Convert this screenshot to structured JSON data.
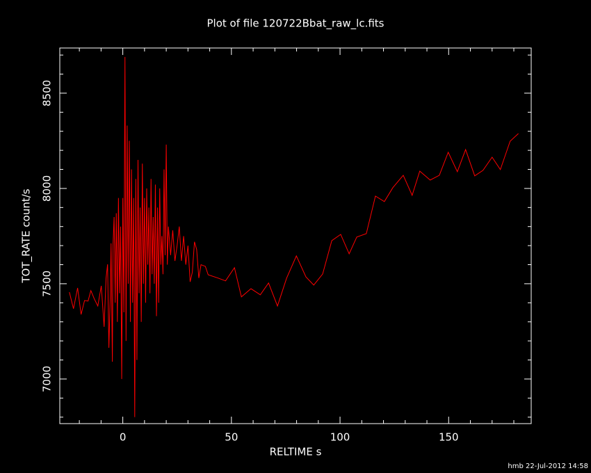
{
  "chart_data": {
    "type": "line",
    "title": "Plot of file 120722Bbat_raw_lc.fits",
    "x_label": "RELTIME  s",
    "y_label": "TOT_RATE  count/s",
    "footer": "hmb 22-Jul-2012 14:58",
    "background": "#000000",
    "axis_color": "#ffffff",
    "xlim": [
      -29,
      188
    ],
    "ylim": [
      6766,
      8737
    ],
    "xticks": [
      0,
      50,
      100,
      150
    ],
    "yticks": [
      7000,
      7500,
      8000,
      8500
    ],
    "xminorticks": [
      -20,
      -10,
      10,
      20,
      30,
      40,
      60,
      70,
      80,
      90,
      110,
      120,
      130,
      140,
      160,
      170,
      180
    ],
    "yminorticks": [
      6800,
      6900,
      7100,
      7200,
      7300,
      7400,
      7600,
      7700,
      7800,
      7900,
      8100,
      8200,
      8300,
      8400,
      8600,
      8700
    ],
    "x": [
      -24.6,
      -22.7,
      -20.8,
      -19.2,
      -17.6,
      -16,
      -14.7,
      -13.1,
      -11.5,
      -9.9,
      -8.6,
      -7.7,
      -7,
      -6.4,
      -5.8,
      -5.4,
      -4.8,
      -4.5,
      -4,
      -3.5,
      -3,
      -2.5,
      -2,
      -1.5,
      -1,
      -0.5,
      0,
      0.5,
      1,
      1.5,
      2,
      2.5,
      3,
      3.5,
      4,
      4.5,
      5,
      5.5,
      6,
      6.5,
      7,
      7.5,
      8,
      8.5,
      9,
      9.5,
      10,
      10.5,
      11,
      11.5,
      12,
      12.5,
      13,
      13.5,
      14,
      14.5,
      15,
      15.5,
      16,
      16.5,
      17,
      17.5,
      18,
      18.5,
      19,
      19.5,
      20,
      20.5,
      21,
      22,
      23,
      24,
      25,
      26,
      27,
      28,
      29,
      30,
      31,
      32,
      33,
      34,
      35,
      36,
      38,
      39.3,
      44,
      47.3,
      51.4,
      54.6,
      59,
      63.3,
      67.1,
      71.2,
      75.4,
      79.9,
      84.3,
      87.9,
      92,
      96.2,
      100.3,
      104.2,
      107.7,
      112.1,
      116.3,
      120.4,
      124.3,
      129.1,
      133.2,
      136.7,
      141.5,
      145.7,
      149.8,
      154,
      157.8,
      162,
      165.8,
      170,
      173.8,
      178.3,
      182.1
    ],
    "series": [
      {
        "color": "#ff0000",
        "values": [
          7456,
          7369,
          7478,
          7339,
          7412,
          7409,
          7464,
          7420,
          7383,
          7489,
          7274,
          7529,
          7602,
          7164,
          7420,
          7712,
          7091,
          7700,
          7850,
          7400,
          7870,
          7300,
          7950,
          7450,
          7800,
          7000,
          7950,
          7350,
          8690,
          7200,
          8330,
          7500,
          8250,
          7300,
          8100,
          7400,
          7950,
          6800,
          8050,
          7100,
          8150,
          7450,
          7900,
          7300,
          8130,
          7500,
          7950,
          7400,
          8000,
          7600,
          7900,
          7450,
          8050,
          7550,
          7850,
          7500,
          8020,
          7330,
          7900,
          7400,
          8000,
          7600,
          7750,
          7550,
          8100,
          7650,
          8230,
          7600,
          7800,
          7650,
          7780,
          7620,
          7700,
          7800,
          7620,
          7750,
          7600,
          7700,
          7510,
          7560,
          7720,
          7680,
          7530,
          7600,
          7591,
          7547,
          7529,
          7515,
          7584,
          7431,
          7474,
          7442,
          7504,
          7383,
          7529,
          7646,
          7536,
          7493,
          7551,
          7726,
          7759,
          7657,
          7745,
          7763,
          7960,
          7931,
          8004,
          8069,
          7964,
          8091,
          8044,
          8069,
          8190,
          8088,
          8204,
          8066,
          8095,
          8164,
          8099,
          8248,
          8288
        ]
      }
    ]
  }
}
